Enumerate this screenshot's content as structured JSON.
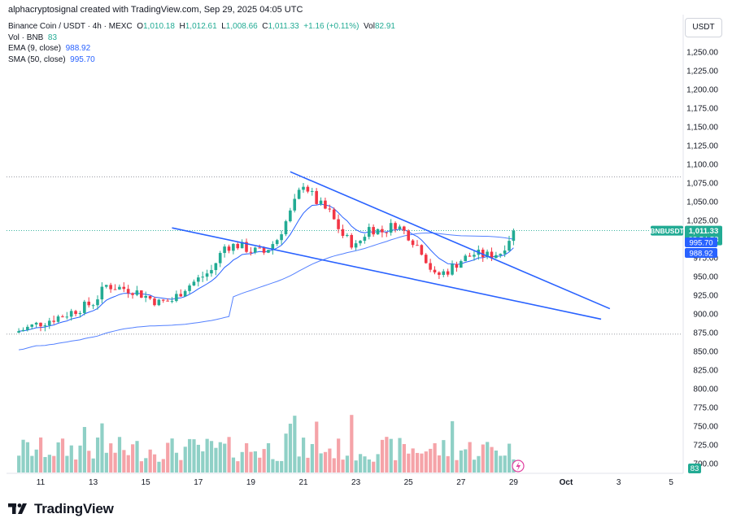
{
  "caption": "alphacryptosignal created with TradingView.com, Sep 29, 2025 04:05 UTC",
  "legend": {
    "symbol": "Binance Coin / USDT · 4h · MEXC",
    "ohlc": {
      "open_label": "O",
      "open": "1,010.18",
      "high_label": "H",
      "high": "1,012.61",
      "low_label": "L",
      "low": "1,008.66",
      "close_label": "C",
      "close": "1,011.33",
      "change": "+1.16 (+0.11%)",
      "vol_label": "Vol",
      "vol": "82.91"
    },
    "volume": {
      "label": "Vol · BNB",
      "value": "83"
    },
    "ema": {
      "label": "EMA (9, close)",
      "value": "988.92"
    },
    "sma": {
      "label": "SMA (50, close)",
      "value": "995.70"
    }
  },
  "currency_button": "USDT",
  "colors": {
    "up": "#22ab94",
    "down": "#f23645",
    "up_vol": "#8fd0c6",
    "down_vol": "#f5a3a8",
    "ma": "#2962ff",
    "trendline": "#2962ff",
    "axis_text": "#131722",
    "dotted": "#787b86"
  },
  "price_axis": {
    "ticks": [
      "1,250.00",
      "1,225.00",
      "1,200.00",
      "1,175.00",
      "1,150.00",
      "1,125.00",
      "1,100.00",
      "1,075.00",
      "1,050.00",
      "1,025.00",
      "975.00",
      "950.00",
      "925.00",
      "900.00",
      "875.00",
      "850.00",
      "825.00",
      "800.00",
      "775.00",
      "750.00",
      "725.00",
      "700.00"
    ],
    "price_label": {
      "symbol": "BNBUSDT",
      "price": "1,011.33",
      "countdown": "03:54:53"
    },
    "sma_label": "995.70",
    "ema_label": "988.92",
    "volume_label": "83"
  },
  "time_axis": {
    "labels": [
      "11",
      "13",
      "15",
      "17",
      "19",
      "21",
      "23",
      "25",
      "27",
      "29",
      "Oct",
      "3",
      "5"
    ]
  },
  "chart_data": {
    "type": "candlestick",
    "symbol": "BNBUSDT",
    "interval": "4h",
    "x_range": [
      "Sep 10",
      "Oct 5"
    ],
    "ylim": [
      700,
      1260
    ],
    "reference_lines": [
      1083,
      873
    ],
    "trendlines": [
      {
        "name": "upper",
        "from": [
          "Sep 20 12:00",
          1090
        ],
        "to": [
          "Oct 2 16:00",
          907
        ]
      },
      {
        "name": "lower",
        "from": [
          "Sep 16 00:00",
          1015
        ],
        "to": [
          "Oct 2 08:00",
          893
        ]
      }
    ],
    "close_anchors": [
      [
        "Sep 10 00:00",
        875
      ],
      [
        "Sep 11 00:00",
        888
      ],
      [
        "Sep 12 00:00",
        900
      ],
      [
        "Sep 13 00:00",
        915
      ],
      [
        "Sep 13 12:00",
        938
      ],
      [
        "Sep 14 12:00",
        932
      ],
      [
        "Sep 15 12:00",
        915
      ],
      [
        "Sep 16 00:00",
        918
      ],
      [
        "Sep 16 12:00",
        935
      ],
      [
        "Sep 17 12:00",
        958
      ],
      [
        "Sep 18 00:00",
        990
      ],
      [
        "Sep 18 12:00",
        992
      ],
      [
        "Sep 19 00:00",
        985
      ],
      [
        "Sep 19 12:00",
        982
      ],
      [
        "Sep 20 00:00",
        1000
      ],
      [
        "Sep 20 12:00",
        1035
      ],
      [
        "Sep 21 00:00",
        1075
      ],
      [
        "Sep 21 12:00",
        1050
      ],
      [
        "Sep 22 00:00",
        1035
      ],
      [
        "Sep 22 12:00",
        1005
      ],
      [
        "Sep 23 00:00",
        990
      ],
      [
        "Sep 23 12:00",
        1015
      ],
      [
        "Sep 24 00:00",
        1010
      ],
      [
        "Sep 24 12:00",
        1020
      ],
      [
        "Sep 25 00:00",
        1005
      ],
      [
        "Sep 25 12:00",
        985
      ],
      [
        "Sep 26 00:00",
        950
      ],
      [
        "Sep 26 12:00",
        958
      ],
      [
        "Sep 27 00:00",
        972
      ],
      [
        "Sep 27 12:00",
        980
      ],
      [
        "Sep 28 00:00",
        978
      ],
      [
        "Sep 28 12:00",
        982
      ],
      [
        "Sep 29 00:00",
        1011
      ]
    ],
    "last_close": 1011.33,
    "ema9_last": 988.92,
    "sma50_last": 995.7,
    "volume_last": 83
  }
}
